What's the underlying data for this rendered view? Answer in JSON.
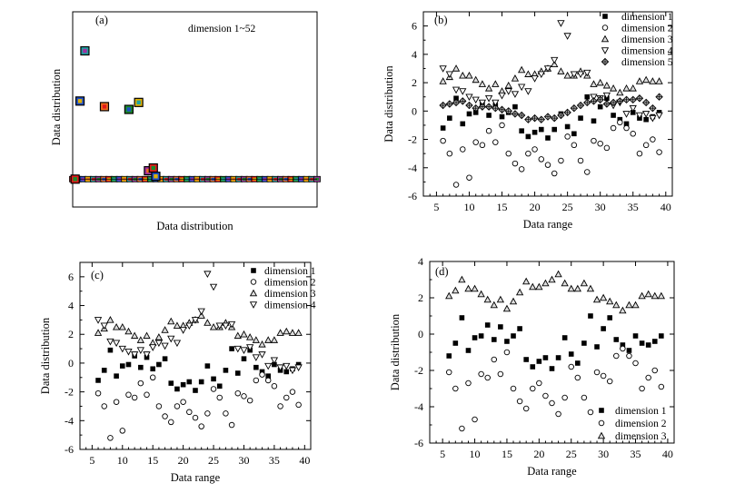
{
  "figure": {
    "panel_labels": [
      "(a)",
      "(b)",
      "(c)",
      "(d)"
    ]
  },
  "chart_data": [
    {
      "panel": "(a)",
      "type": "scatter",
      "title": "",
      "xlabel": "Data distribution",
      "ylabel": "Data distribution",
      "legend": [
        "dimension 1~52"
      ],
      "legend_position": "top-center",
      "xlim": [
        0,
        100
      ],
      "ylim": [
        -10,
        60
      ],
      "ticks": false,
      "outliers": [
        {
          "x": 1,
          "y": 0
        },
        {
          "x": 3,
          "y": 28
        },
        {
          "x": 5,
          "y": 46
        },
        {
          "x": 13,
          "y": 26
        },
        {
          "x": 23,
          "y": 25
        },
        {
          "x": 27,
          "y": 27.5
        },
        {
          "x": 31,
          "y": 3
        },
        {
          "x": 33,
          "y": 4
        },
        {
          "x": 34,
          "y": 1
        }
      ],
      "baseline_y": 0,
      "baseline_x": [
        0,
        100
      ],
      "baseline_count": 48
    },
    {
      "panel": "(b)",
      "type": "scatter",
      "xlabel": "Data range",
      "ylabel": "Data distribution",
      "xlim": [
        3,
        41
      ],
      "ylim": [
        -6,
        7
      ],
      "xticks": [
        5,
        10,
        15,
        20,
        25,
        30,
        35,
        40
      ],
      "yticks": [
        -6,
        -4,
        -2,
        0,
        2,
        4,
        6
      ],
      "legend_position": "top-right",
      "x": [
        6,
        7,
        8,
        9,
        10,
        11,
        12,
        13,
        14,
        15,
        16,
        17,
        18,
        19,
        20,
        21,
        22,
        23,
        24,
        25,
        26,
        27,
        28,
        29,
        30,
        31,
        32,
        33,
        34,
        35,
        36,
        37,
        38,
        39
      ],
      "series": [
        {
          "name": "dimension 1",
          "marker": "square",
          "values": [
            -1.2,
            -0.5,
            0.9,
            -0.9,
            -0.2,
            -0.1,
            0.5,
            -0.3,
            0.4,
            -0.4,
            -0.1,
            0.3,
            -1.4,
            -1.8,
            -1.5,
            -1.3,
            -1.9,
            -1.3,
            -0.2,
            -1.1,
            -1.6,
            -0.5,
            1.0,
            -0.7,
            0.3,
            0.9,
            -0.3,
            -0.6,
            -0.9,
            -0.1,
            -0.5,
            -0.6,
            -0.4,
            -0.1
          ]
        },
        {
          "name": "dimension 2",
          "marker": "circle",
          "values": [
            -2.1,
            -3.0,
            -5.2,
            -2.7,
            -4.7,
            -2.2,
            -2.4,
            -1.4,
            -2.2,
            -1.0,
            -3.0,
            -3.7,
            -4.1,
            -3.0,
            -2.7,
            -3.4,
            -3.8,
            -4.4,
            -3.5,
            -1.8,
            -2.4,
            -3.5,
            -4.3,
            -2.1,
            -2.3,
            -2.6,
            -1.2,
            -0.8,
            -1.2,
            -1.6,
            -3.0,
            -2.4,
            -2.0,
            -2.9
          ]
        },
        {
          "name": "dimension 3",
          "marker": "triangle-up",
          "values": [
            2.1,
            2.4,
            3.0,
            2.5,
            2.5,
            2.2,
            1.9,
            1.6,
            1.9,
            1.4,
            1.8,
            2.3,
            2.9,
            2.6,
            2.6,
            2.8,
            3.0,
            3.3,
            2.8,
            2.5,
            2.5,
            2.8,
            2.5,
            1.9,
            2.0,
            1.8,
            1.6,
            1.3,
            1.6,
            1.6,
            2.1,
            2.2,
            2.1,
            2.1
          ]
        },
        {
          "name": "dimension 4",
          "marker": "triangle-down",
          "values": [
            3.0,
            2.6,
            1.5,
            1.4,
            1.0,
            0.8,
            0.6,
            0.9,
            0.6,
            1.1,
            1.4,
            1.2,
            1.7,
            1.4,
            2.3,
            2.6,
            3.0,
            3.6,
            6.2,
            5.3,
            2.6,
            2.6,
            2.7,
            1.0,
            0.9,
            1.1,
            0.4,
            0.6,
            -0.2,
            0.2,
            -0.3,
            -0.2,
            -0.5,
            -0.3
          ]
        },
        {
          "name": "dimension 5",
          "marker": "diamond-plus",
          "values": [
            0.4,
            0.5,
            0.6,
            0.7,
            0.4,
            0.2,
            0.3,
            0.3,
            0.2,
            0.1,
            0.0,
            -0.2,
            -0.3,
            -0.6,
            -0.5,
            -0.6,
            -0.4,
            -0.5,
            -0.3,
            -0.1,
            0.2,
            0.4,
            0.6,
            0.7,
            0.8,
            0.5,
            0.6,
            0.7,
            0.8,
            0.8,
            0.9,
            0.6,
            0.2,
            1.0
          ]
        }
      ]
    },
    {
      "panel": "(c)",
      "type": "scatter",
      "xlabel": "Data range",
      "ylabel": "Data distribution",
      "xlim": [
        3,
        41
      ],
      "ylim": [
        -6,
        7
      ],
      "xticks": [
        5,
        10,
        15,
        20,
        25,
        30,
        35,
        40
      ],
      "yticks": [
        -6,
        -4,
        -2,
        0,
        2,
        4,
        6
      ],
      "legend_position": "top-right",
      "x": [
        6,
        7,
        8,
        9,
        10,
        11,
        12,
        13,
        14,
        15,
        16,
        17,
        18,
        19,
        20,
        21,
        22,
        23,
        24,
        25,
        26,
        27,
        28,
        29,
        30,
        31,
        32,
        33,
        34,
        35,
        36,
        37,
        38,
        39
      ],
      "series": [
        {
          "name": "dimension 1",
          "marker": "square",
          "values": [
            -1.2,
            -0.5,
            0.9,
            -0.9,
            -0.2,
            -0.1,
            0.5,
            -0.3,
            0.4,
            -0.4,
            -0.1,
            0.3,
            -1.4,
            -1.8,
            -1.5,
            -1.3,
            -1.9,
            -1.3,
            -0.2,
            -1.1,
            -1.6,
            -0.5,
            1.0,
            -0.7,
            0.3,
            0.9,
            -0.3,
            -0.6,
            -0.9,
            -0.1,
            -0.5,
            -0.6,
            -0.4,
            -0.1
          ]
        },
        {
          "name": "dimension 2",
          "marker": "circle",
          "values": [
            -2.1,
            -3.0,
            -5.2,
            -2.7,
            -4.7,
            -2.2,
            -2.4,
            -1.4,
            -2.2,
            -1.0,
            -3.0,
            -3.7,
            -4.1,
            -3.0,
            -2.7,
            -3.4,
            -3.8,
            -4.4,
            -3.5,
            -1.8,
            -2.4,
            -3.5,
            -4.3,
            -2.1,
            -2.3,
            -2.6,
            -1.2,
            -0.8,
            -1.2,
            -1.6,
            -3.0,
            -2.4,
            -2.0,
            -2.9
          ]
        },
        {
          "name": "dimension 3",
          "marker": "triangle-up",
          "values": [
            2.1,
            2.4,
            3.0,
            2.5,
            2.5,
            2.2,
            1.9,
            1.6,
            1.9,
            1.4,
            1.8,
            2.3,
            2.9,
            2.6,
            2.6,
            2.8,
            3.0,
            3.3,
            2.8,
            2.5,
            2.5,
            2.8,
            2.5,
            1.9,
            2.0,
            1.8,
            1.6,
            1.3,
            1.6,
            1.6,
            2.1,
            2.2,
            2.1,
            2.1
          ]
        },
        {
          "name": "dimension 4",
          "marker": "triangle-down",
          "values": [
            3.0,
            2.6,
            1.5,
            1.4,
            1.0,
            0.8,
            0.6,
            0.9,
            0.6,
            1.1,
            1.4,
            1.2,
            1.7,
            1.4,
            2.3,
            2.6,
            3.0,
            3.6,
            6.2,
            5.3,
            2.6,
            2.6,
            2.7,
            1.0,
            0.9,
            1.1,
            0.4,
            0.6,
            -0.2,
            0.2,
            -0.3,
            -0.2,
            -0.5,
            -0.3
          ]
        }
      ]
    },
    {
      "panel": "(d)",
      "type": "scatter",
      "xlabel": "Data range",
      "ylabel": "Data distribution",
      "xlim": [
        3,
        41
      ],
      "ylim": [
        -6,
        4
      ],
      "xticks": [
        5,
        10,
        15,
        20,
        25,
        30,
        35,
        40
      ],
      "yticks": [
        -6,
        -4,
        -2,
        0,
        2,
        4
      ],
      "legend_position": "bottom-right",
      "x": [
        6,
        7,
        8,
        9,
        10,
        11,
        12,
        13,
        14,
        15,
        16,
        17,
        18,
        19,
        20,
        21,
        22,
        23,
        24,
        25,
        26,
        27,
        28,
        29,
        30,
        31,
        32,
        33,
        34,
        35,
        36,
        37,
        38,
        39
      ],
      "series": [
        {
          "name": "dimension 1",
          "marker": "square",
          "values": [
            -1.2,
            -0.5,
            0.9,
            -0.9,
            -0.2,
            -0.1,
            0.5,
            -0.3,
            0.4,
            -0.4,
            -0.1,
            0.3,
            -1.4,
            -1.8,
            -1.5,
            -1.3,
            -1.9,
            -1.3,
            -0.2,
            -1.1,
            -1.6,
            -0.5,
            1.0,
            -0.7,
            0.3,
            0.9,
            -0.3,
            -0.6,
            -0.9,
            -0.1,
            -0.5,
            -0.6,
            -0.4,
            -0.1
          ]
        },
        {
          "name": "dimension 2",
          "marker": "circle",
          "values": [
            -2.1,
            -3.0,
            -5.2,
            -2.7,
            -4.7,
            -2.2,
            -2.4,
            -1.4,
            -2.2,
            -1.0,
            -3.0,
            -3.7,
            -4.1,
            -3.0,
            -2.7,
            -3.4,
            -3.8,
            -4.4,
            -3.5,
            -1.8,
            -2.4,
            -3.5,
            -4.3,
            -2.1,
            -2.3,
            -2.6,
            -1.2,
            -0.8,
            -1.2,
            -1.6,
            -3.0,
            -2.4,
            -2.0,
            -2.9
          ]
        },
        {
          "name": "dimension 3",
          "marker": "triangle-up",
          "values": [
            2.1,
            2.4,
            3.0,
            2.5,
            2.5,
            2.2,
            1.9,
            1.6,
            1.9,
            1.4,
            1.8,
            2.3,
            2.9,
            2.6,
            2.6,
            2.8,
            3.0,
            3.3,
            2.8,
            2.5,
            2.5,
            2.8,
            2.5,
            1.9,
            2.0,
            1.8,
            1.6,
            1.3,
            1.6,
            1.6,
            2.1,
            2.2,
            2.1,
            2.1
          ]
        }
      ]
    }
  ]
}
